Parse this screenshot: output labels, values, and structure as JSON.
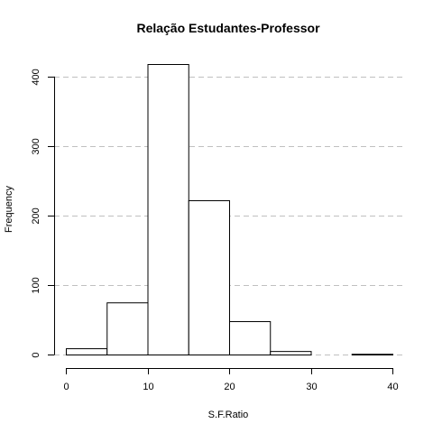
{
  "chart_data": {
    "type": "bar",
    "title": "Relação Estudantes-Professor",
    "xlabel": "S.F.Ratio",
    "ylabel": "Frequency",
    "bins": [
      {
        "from": 0,
        "to": 5,
        "value": 9
      },
      {
        "from": 5,
        "to": 10,
        "value": 75
      },
      {
        "from": 10,
        "to": 15,
        "value": 418
      },
      {
        "from": 15,
        "to": 20,
        "value": 222
      },
      {
        "from": 20,
        "to": 25,
        "value": 48
      },
      {
        "from": 25,
        "to": 30,
        "value": 5
      },
      {
        "from": 30,
        "to": 35,
        "value": 0
      },
      {
        "from": 35,
        "to": 40,
        "value": 1
      }
    ],
    "xlim": [
      0,
      40
    ],
    "ylim": [
      0,
      418
    ],
    "x_ticks": [
      "0",
      "10",
      "20",
      "30",
      "40"
    ],
    "y_ticks": [
      "0",
      "100",
      "200",
      "300",
      "400"
    ],
    "grid": "horizontal dashed",
    "colors": {
      "bar_fill": "#ffffff",
      "bar_stroke": "#000000",
      "grid": "#c0c0c0"
    }
  }
}
